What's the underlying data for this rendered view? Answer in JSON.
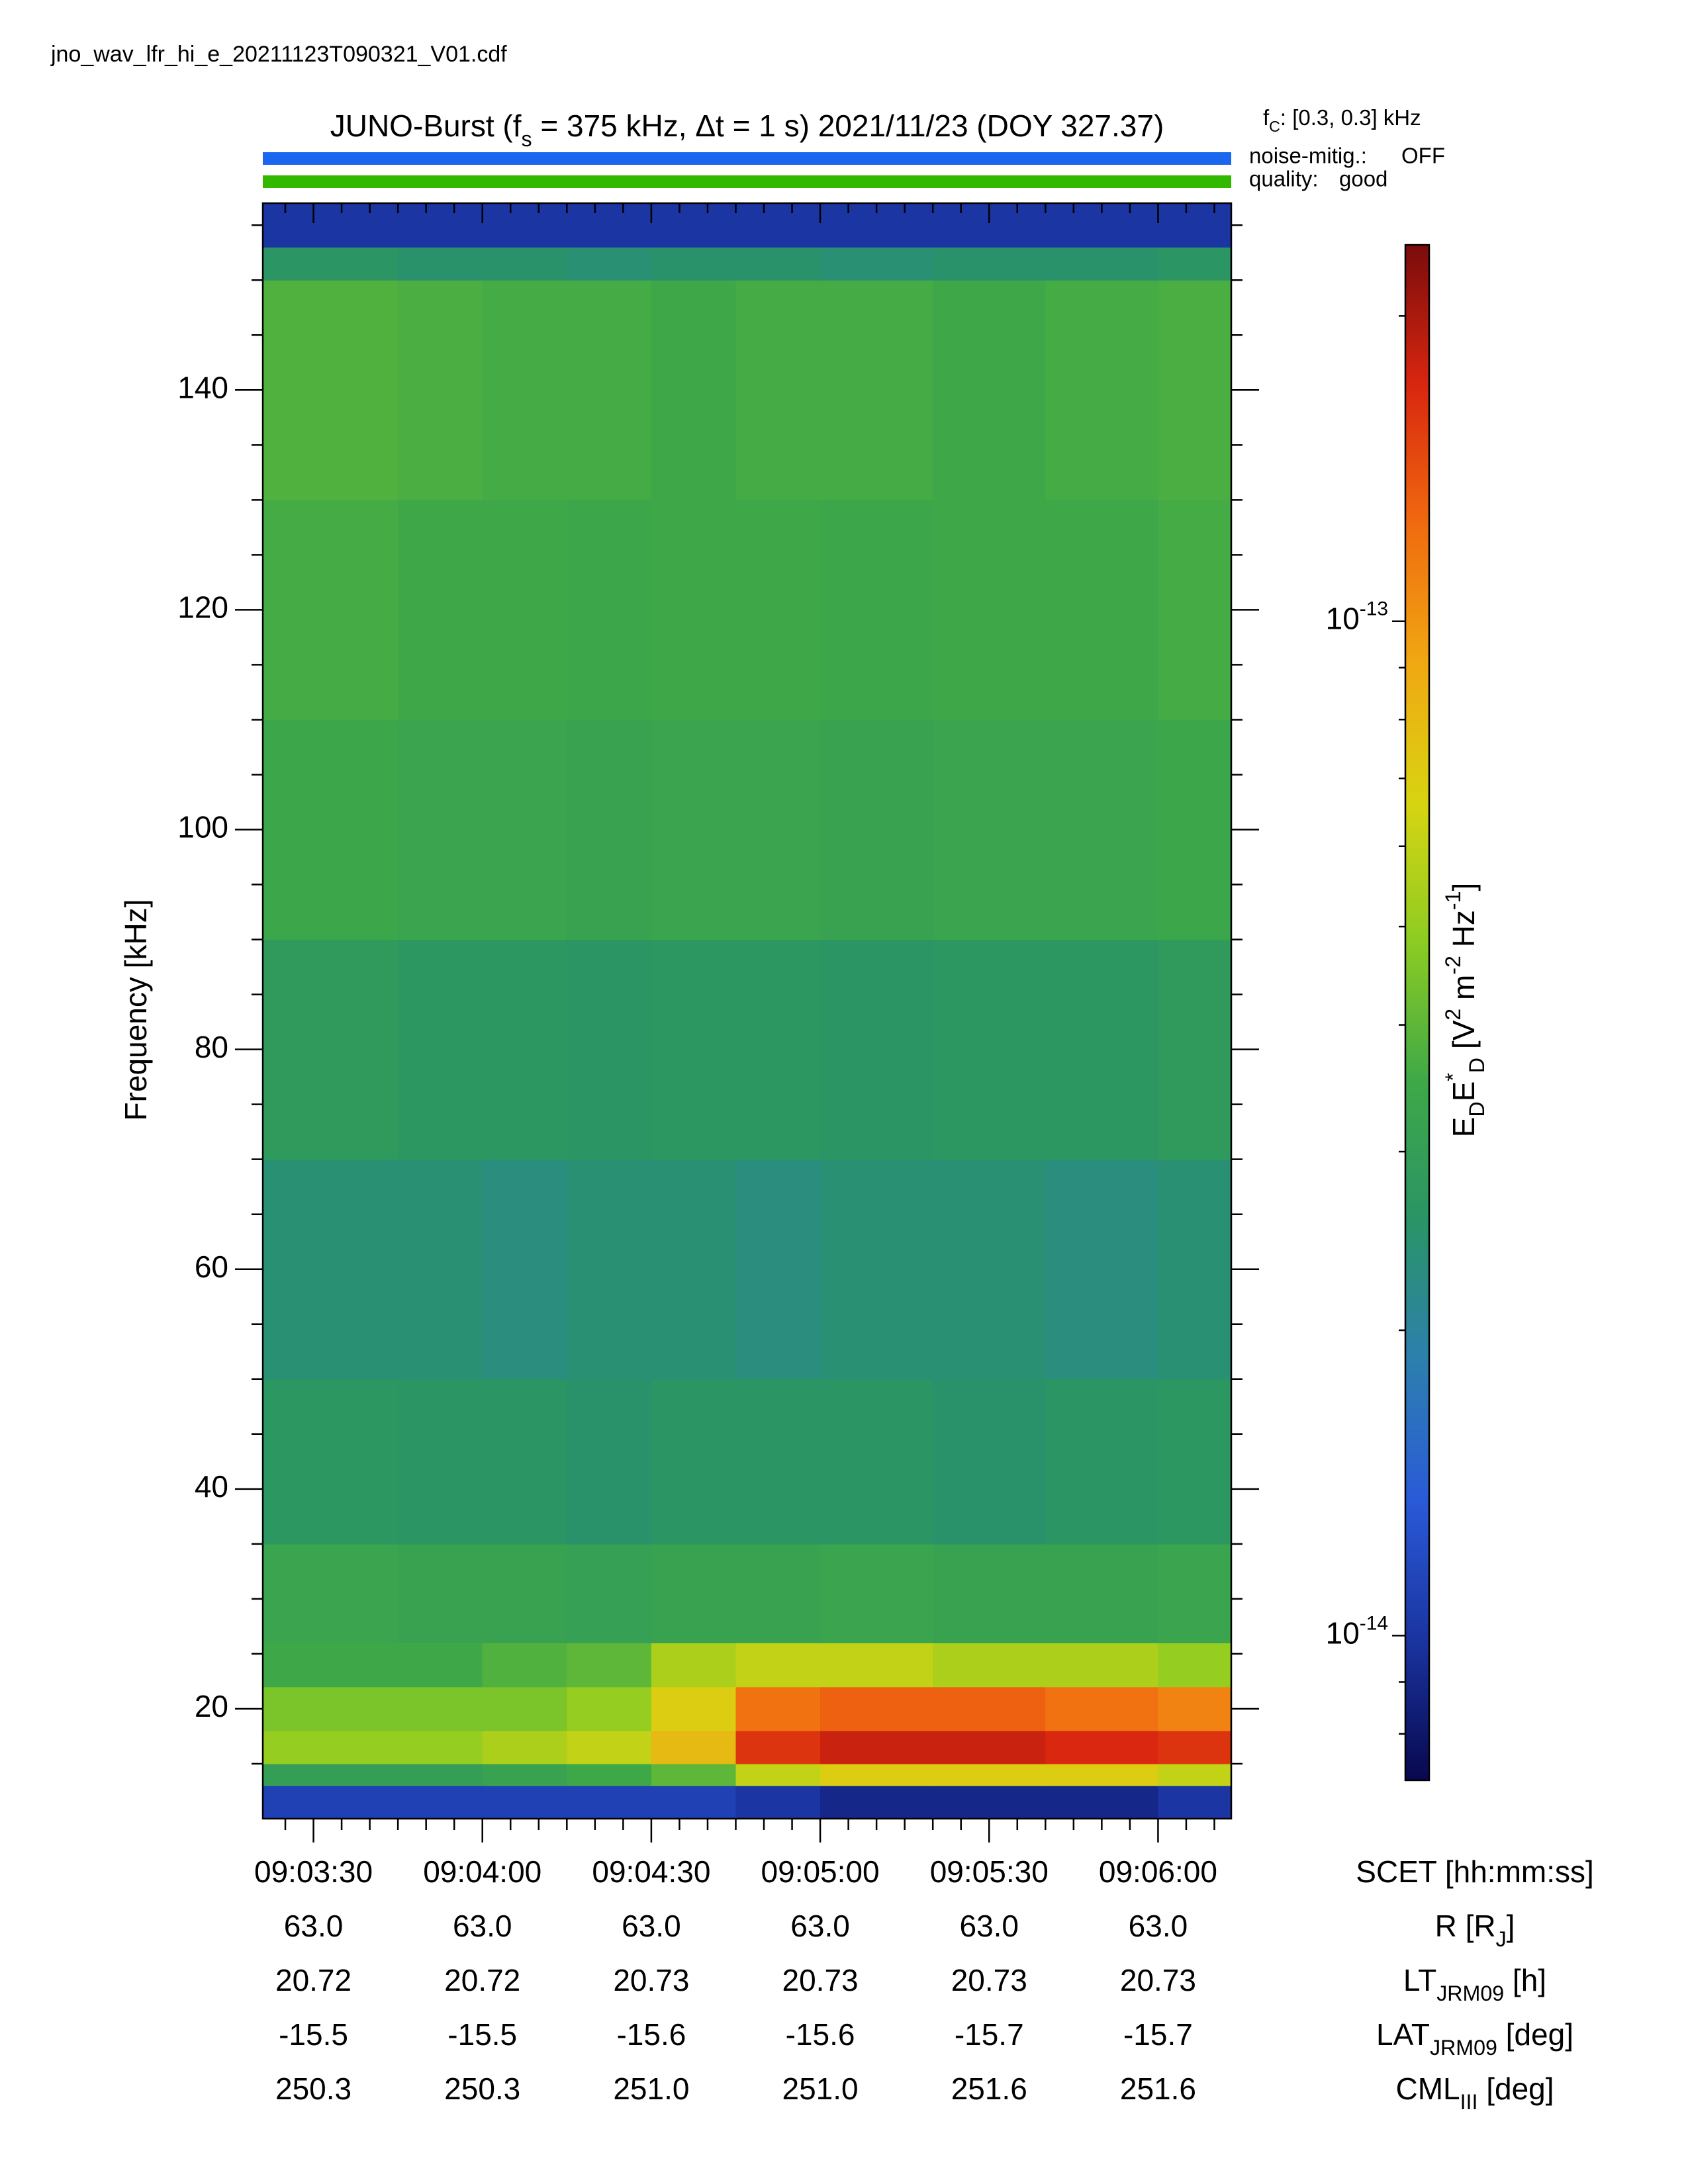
{
  "chart_data": {
    "type": "heatmap",
    "file_name": "jno_wav_lfr_hi_e_20211123T090321_V01.cdf",
    "title_parts": [
      "JUNO-Burst (f",
      {
        "sub": "s"
      },
      " = 375 kHz, Δt = 1 s)  2021/11/23 (DOY 327.37)"
    ],
    "cutoff_parts": [
      "f",
      {
        "sub": "C"
      },
      ": [0.3, 0.3] kHz"
    ],
    "status": [
      {
        "label": "noise-mitig.:",
        "value": "OFF",
        "color": "#1a66ee"
      },
      {
        "label": "quality:",
        "value": "good",
        "color": "#33b800"
      }
    ],
    "y_label": "Frequency [kHz]",
    "x_label": "SCET [hh:mm:ss]",
    "xlim": [
      32601,
      32773
    ],
    "xticks": [
      {
        "value": 32610,
        "label": "09:03:30"
      },
      {
        "value": 32640,
        "label": "09:04:00"
      },
      {
        "value": 32670,
        "label": "09:04:30"
      },
      {
        "value": 32700,
        "label": "09:05:00"
      },
      {
        "value": 32730,
        "label": "09:05:30"
      },
      {
        "value": 32760,
        "label": "09:06:00"
      }
    ],
    "xticks_minor": [
      32605,
      32615,
      32620,
      32625,
      32630,
      32635,
      32645,
      32650,
      32655,
      32660,
      32665,
      32675,
      32680,
      32685,
      32690,
      32695,
      32705,
      32710,
      32715,
      32720,
      32725,
      32735,
      32740,
      32745,
      32750,
      32755,
      32765,
      32770
    ],
    "ylim": [
      10,
      157
    ],
    "yticks": [
      20,
      40,
      60,
      80,
      100,
      120,
      140
    ],
    "yticks_minor": [
      15,
      25,
      30,
      35,
      45,
      50,
      55,
      65,
      70,
      75,
      85,
      90,
      95,
      105,
      110,
      115,
      125,
      130,
      135,
      145,
      150,
      155
    ],
    "ephemeris": [
      {
        "label_parts": [
          "R [R",
          {
            "sub": "J"
          },
          "]"
        ],
        "values": [
          "63.0",
          "63.0",
          "63.0",
          "63.0",
          "63.0",
          "63.0"
        ]
      },
      {
        "label_parts": [
          "LT",
          {
            "sub": "JRM09"
          },
          " [h]"
        ],
        "values": [
          "20.72",
          "20.72",
          "20.73",
          "20.73",
          "20.73",
          "20.73"
        ]
      },
      {
        "label_parts": [
          "LAT",
          {
            "sub": "JRM09"
          },
          " [deg]"
        ],
        "values": [
          "-15.5",
          "-15.5",
          "-15.6",
          "-15.6",
          "-15.7",
          "-15.7"
        ]
      },
      {
        "label_parts": [
          "CML",
          {
            "sub": "III"
          },
          " [deg]"
        ],
        "values": [
          "250.3",
          "250.3",
          "251.0",
          "251.0",
          "251.6",
          "251.6"
        ]
      }
    ],
    "color_label_parts": [
      "E",
      {
        "sub": "D"
      },
      "E",
      {
        "sup": "*"
      },
      {
        "sub": "D"
      },
      " [V",
      {
        "sup": "2"
      },
      " m",
      {
        "sup": "-2"
      },
      " Hz",
      {
        "sup": "-1"
      },
      "]"
    ],
    "clim": [
      7.2e-15,
      2.35e-13
    ],
    "color_log_scale": true,
    "cticks": [
      {
        "value": 1e-14,
        "label": "10",
        "sup": "-14"
      },
      {
        "value": 1e-13,
        "label": "10",
        "sup": "-13"
      }
    ],
    "cticks_minor": [
      8e-15,
      9e-15,
      2e-14,
      3e-14,
      4e-14,
      5e-14,
      6e-14,
      7e-14,
      8e-14,
      9e-14,
      2e-13
    ],
    "colormap": [
      "#08084e",
      "#1a34a0",
      "#2a5ad8",
      "#2c7fae",
      "#2a9466",
      "#3ea848",
      "#8ccc22",
      "#d8d412",
      "#f0a812",
      "#f06a10",
      "#d82610",
      "#7a0c0c"
    ],
    "x_edges": [
      32601,
      32625,
      32640,
      32655,
      32670,
      32685,
      32700,
      32720,
      32740,
      32760,
      32773
    ],
    "y_edges": [
      10,
      13,
      15,
      18,
      22,
      26,
      35,
      50,
      70,
      90,
      110,
      130,
      150,
      153,
      157
    ],
    "z": [
      [
        1.1e-14,
        1.1e-14,
        1.1e-14,
        1.1e-14,
        1.1e-14,
        1e-14,
        9e-15,
        9e-15,
        9e-15,
        1e-14
      ],
      [
        3e-14,
        3e-14,
        3.2e-14,
        3.5e-14,
        4e-14,
        6e-14,
        7e-14,
        7e-14,
        7e-14,
        6e-14
      ],
      [
        5e-14,
        5e-14,
        5.5e-14,
        6e-14,
        8e-14,
        1.6e-13,
        1.8e-13,
        1.8e-13,
        1.7e-13,
        1.6e-13
      ],
      [
        4.5e-14,
        4.5e-14,
        4.5e-14,
        5e-14,
        7e-14,
        1.2e-13,
        1.3e-13,
        1.3e-13,
        1.2e-13,
        1.1e-13
      ],
      [
        3.5e-14,
        3.5e-14,
        3.8e-14,
        4e-14,
        5.5e-14,
        6e-14,
        6e-14,
        5.5e-14,
        5.5e-14,
        5e-14
      ],
      [
        3.3e-14,
        3.2e-14,
        3.2e-14,
        3.1e-14,
        3.2e-14,
        3.2e-14,
        3.3e-14,
        3.2e-14,
        3.2e-14,
        3.3e-14
      ],
      [
        2.7e-14,
        2.6e-14,
        2.6e-14,
        2.5e-14,
        2.6e-14,
        2.6e-14,
        2.6e-14,
        2.5e-14,
        2.6e-14,
        2.7e-14
      ],
      [
        2.4e-14,
        2.4e-14,
        2.3e-14,
        2.4e-14,
        2.4e-14,
        2.3e-14,
        2.4e-14,
        2.4e-14,
        2.3e-14,
        2.4e-14
      ],
      [
        2.8e-14,
        2.7e-14,
        2.7e-14,
        2.6e-14,
        2.7e-14,
        2.7e-14,
        2.6e-14,
        2.7e-14,
        2.7e-14,
        2.8e-14
      ],
      [
        3.4e-14,
        3.3e-14,
        3.3e-14,
        3.2e-14,
        3.3e-14,
        3.3e-14,
        3.2e-14,
        3.3e-14,
        3.3e-14,
        3.4e-14
      ],
      [
        3.6e-14,
        3.5e-14,
        3.5e-14,
        3.4e-14,
        3.5e-14,
        3.5e-14,
        3.4e-14,
        3.5e-14,
        3.5e-14,
        3.6e-14
      ],
      [
        3.8e-14,
        3.7e-14,
        3.6e-14,
        3.6e-14,
        3.5e-14,
        3.6e-14,
        3.6e-14,
        3.5e-14,
        3.6e-14,
        3.7e-14
      ],
      [
        2.6e-14,
        2.5e-14,
        2.5e-14,
        2.4e-14,
        2.5e-14,
        2.5e-14,
        2.4e-14,
        2.5e-14,
        2.5e-14,
        2.6e-14
      ],
      [
        1e-14,
        1e-14,
        1e-14,
        1e-14,
        1e-14,
        1e-14,
        1e-14,
        1e-14,
        1e-14,
        1e-14
      ]
    ]
  }
}
